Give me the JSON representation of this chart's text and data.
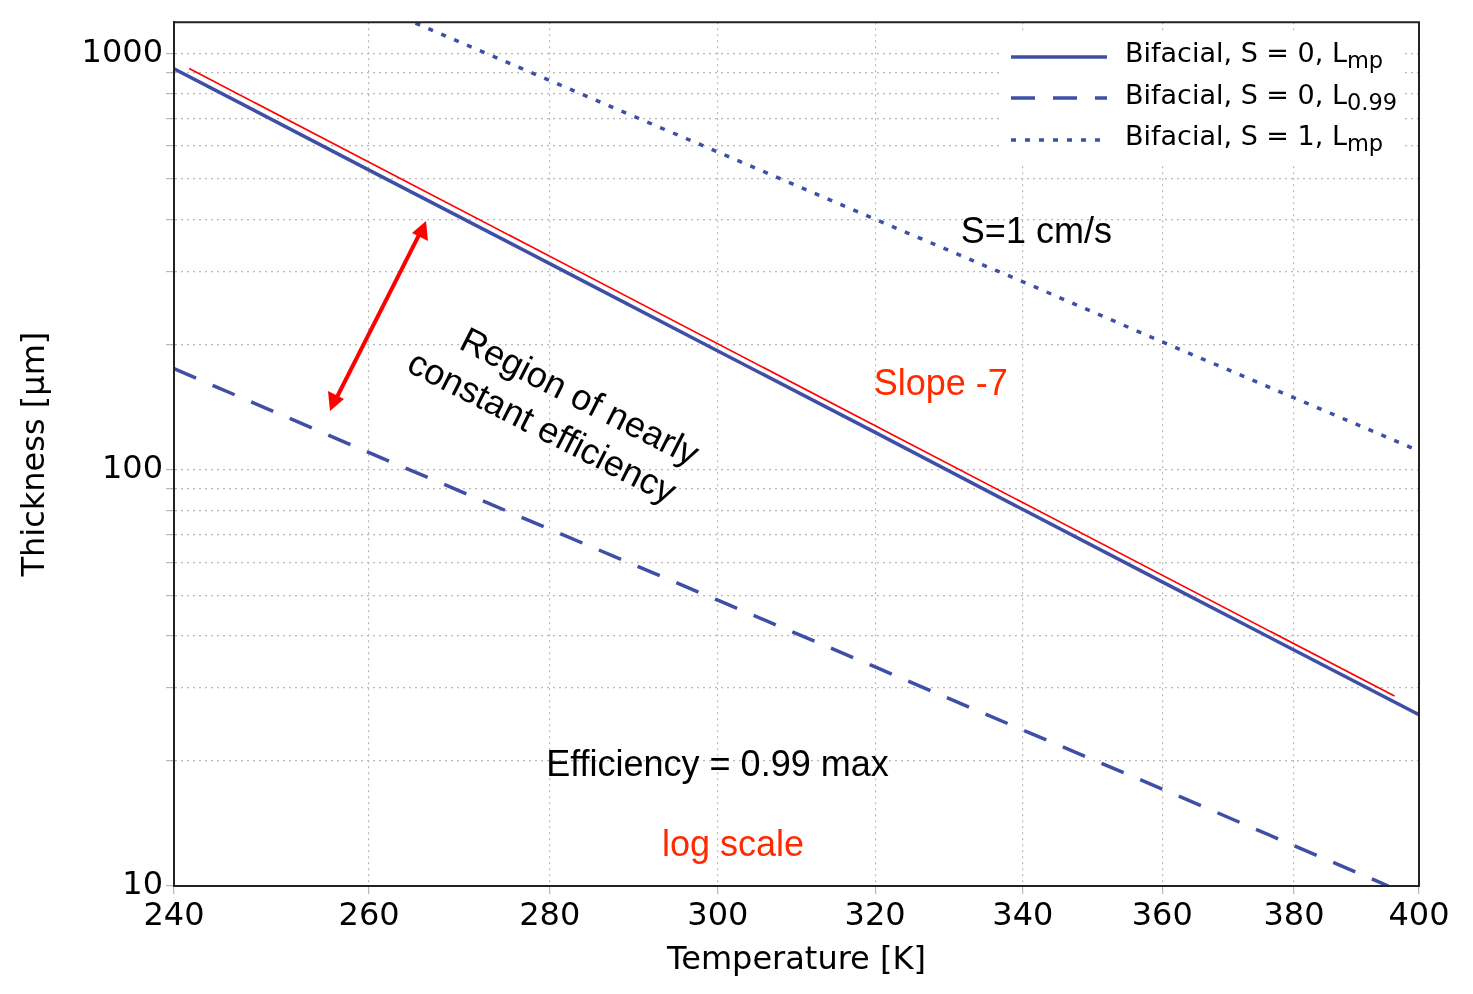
{
  "chart_data": {
    "type": "line",
    "xlabel": "Temperature [K]",
    "ylabel": "Thickness [µm]",
    "log": "xy",
    "grid": true,
    "legend": "top right",
    "xlim": [
      240,
      400
    ],
    "xticks": [
      240,
      260,
      280,
      300,
      320,
      340,
      360,
      380,
      400
    ],
    "ylim": [
      10,
      1190
    ],
    "yticks": [
      10,
      {
        "value": 20,
        "label": null
      },
      {
        "value": 30,
        "label": null
      },
      {
        "value": 40,
        "label": null
      },
      {
        "value": 50,
        "label": null
      },
      {
        "value": 60,
        "label": null
      },
      {
        "value": 70,
        "label": null
      },
      {
        "value": 80,
        "label": null
      },
      {
        "value": 90,
        "label": null
      },
      100,
      {
        "value": 200,
        "label": null
      },
      {
        "value": 300,
        "label": null
      },
      {
        "value": 400,
        "label": null
      },
      {
        "value": 500,
        "label": null
      },
      {
        "value": 600,
        "label": null
      },
      {
        "value": 700,
        "label": null
      },
      {
        "value": 800,
        "label": null
      },
      {
        "value": 900,
        "label": null
      },
      1000
    ],
    "series": [
      {
        "name": "Bifacial, S = 0, L$_{mp}$",
        "color": "#3f4fa5",
        "line_style": "solid",
        "x": [
          240,
          260,
          280,
          300,
          320,
          340,
          360,
          380,
          400
        ],
        "values": [
          920,
          525,
          313,
          193,
          123,
          80.3,
          53.8,
          36.9,
          25.8
        ]
      },
      {
        "name": "Bifacial, S = 0, L$_{0.99}$",
        "color": "#3f4fa5",
        "line_style": "dashed",
        "x": [
          240,
          260,
          280,
          300,
          320,
          340,
          360,
          380,
          395
        ],
        "values": [
          175,
          110,
          72,
          48.6,
          33.6,
          23.7,
          17.1,
          12.5,
          10
        ]
      },
      {
        "name": "Bifacial, S = 1, L$_{mp}$",
        "color": "#3f4fa5",
        "line_style": "dotted",
        "x": [
          265,
          280,
          300,
          320,
          340,
          360,
          380,
          400
        ],
        "values": [
          1184,
          862,
          580,
          400,
          283,
          203,
          149,
          111
        ]
      },
      {
        "type": "line",
        "color": "#ff0000",
        "line_style": "solid",
        "x": [
          241.5,
          396
        ],
        "values": [
          921,
          28.6
        ]
      }
    ],
    "annotations": [
      "S=1 cm/s",
      "Slope -7",
      "Region of nearly constant efficiency",
      "Efficiency = 0.99 max",
      "log scale"
    ]
  }
}
